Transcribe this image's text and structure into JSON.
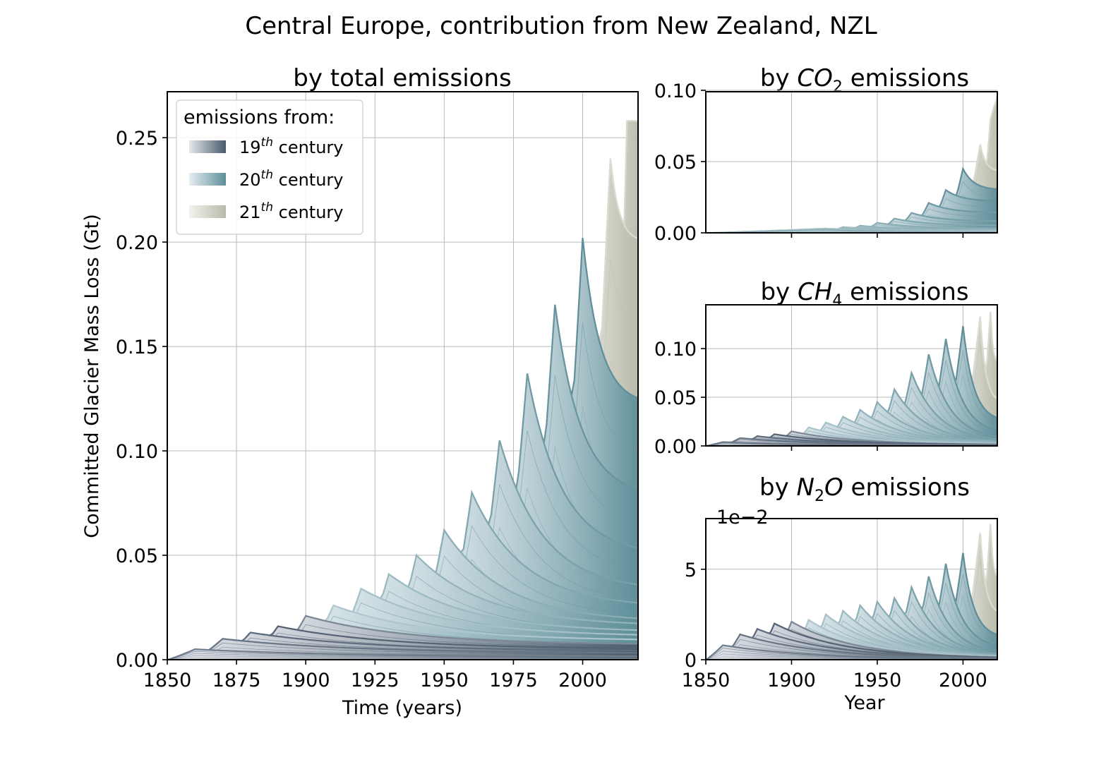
{
  "figure": {
    "suptitle": "Central Europe, contribution from New Zealand, NZL"
  },
  "colors": {
    "c19_dark": "#4a5a6c",
    "c19_light": "#e4e7ec",
    "c20_dark": "#5e8e99",
    "c20_light": "#e6eef2",
    "c21_dark": "#b9baa9",
    "c21_light": "#f3f3ee"
  },
  "legend": {
    "title": "emissions from:",
    "items": [
      {
        "base": "19",
        "sup": "th",
        "rest": " century",
        "color_key": "c19"
      },
      {
        "base": "20",
        "sup": "th",
        "rest": " century",
        "color_key": "c20"
      },
      {
        "base": "21",
        "sup": "th",
        "rest": " century",
        "color_key": "c21"
      }
    ]
  },
  "chart_data": [
    {
      "id": "total",
      "type": "area",
      "title": "by total emissions",
      "xlabel": "Time (years)",
      "ylabel": "Committed Glacier Mass Loss (Gt)",
      "xlim": [
        1850,
        2020
      ],
      "ylim": [
        0,
        0.272
      ],
      "xticks": [
        1850,
        1875,
        1900,
        1925,
        1950,
        1975,
        2000
      ],
      "xtick_labels": [
        "1850",
        "1875",
        "1900",
        "1925",
        "1950",
        "1975",
        "2000"
      ],
      "yticks": [
        0,
        0.05,
        0.1,
        0.15,
        0.2,
        0.25
      ],
      "ytick_labels": [
        "0.00",
        "0.05",
        "0.10",
        "0.15",
        "0.20",
        "0.25"
      ],
      "grid": true,
      "legend_position": "upper-left",
      "peak_years": [
        1860,
        1870,
        1880,
        1890,
        1900,
        1910,
        1920,
        1930,
        1940,
        1950,
        1960,
        1970,
        1980,
        1990,
        2000,
        2010,
        2016
      ],
      "peak_values": [
        0.005,
        0.01,
        0.013,
        0.016,
        0.021,
        0.026,
        0.034,
        0.041,
        0.05,
        0.062,
        0.08,
        0.105,
        0.137,
        0.17,
        0.202,
        0.24,
        0.258
      ],
      "end_values": [
        0.0015,
        0.003,
        0.004,
        0.005,
        0.007,
        0.009,
        0.011,
        0.013,
        0.016,
        0.018,
        0.025,
        0.033,
        0.05,
        0.078,
        0.122,
        0.2,
        0.258
      ]
    },
    {
      "id": "co2",
      "type": "area",
      "title_prefix": "by ",
      "title_formula": "CO",
      "title_sub": "2",
      "title_suffix": " emissions",
      "xlim": [
        1850,
        2020
      ],
      "ylim": [
        0,
        0.099
      ],
      "xticks": [
        1900,
        1950,
        2000
      ],
      "yticks": [
        0,
        0.05,
        0.1
      ],
      "ytick_labels": [
        "0.00",
        "0.05",
        "0.10"
      ],
      "grid": true,
      "show_xtick_labels": false,
      "peak_years": [
        1920,
        1930,
        1940,
        1950,
        1960,
        1970,
        1980,
        1990,
        2000,
        2010,
        2016
      ],
      "peak_values": [
        0.003,
        0.004,
        0.005,
        0.007,
        0.01,
        0.014,
        0.021,
        0.03,
        0.045,
        0.062,
        0.08
      ],
      "end_values": [
        0.001,
        0.0015,
        0.002,
        0.003,
        0.005,
        0.008,
        0.014,
        0.022,
        0.03,
        0.043,
        0.062
      ],
      "final_value": 0.096
    },
    {
      "id": "ch4",
      "type": "area",
      "title_prefix": "by ",
      "title_formula": "CH",
      "title_sub": "4",
      "title_suffix": " emissions",
      "xlim": [
        1850,
        2020
      ],
      "ylim": [
        0,
        0.145
      ],
      "xticks": [
        1900,
        1950,
        2000
      ],
      "yticks": [
        0,
        0.05,
        0.1
      ],
      "ytick_labels": [
        "0.00",
        "0.05",
        "0.10"
      ],
      "grid": true,
      "show_xtick_labels": false,
      "peak_years": [
        1860,
        1870,
        1880,
        1890,
        1900,
        1910,
        1920,
        1930,
        1940,
        1950,
        1960,
        1970,
        1980,
        1990,
        2000,
        2010,
        2016
      ],
      "peak_values": [
        0.004,
        0.008,
        0.01,
        0.012,
        0.015,
        0.019,
        0.024,
        0.03,
        0.037,
        0.045,
        0.058,
        0.075,
        0.094,
        0.11,
        0.123,
        0.133,
        0.138
      ],
      "end_values": [
        0.0003,
        0.0005,
        0.0007,
        0.0009,
        0.001,
        0.0012,
        0.0014,
        0.0016,
        0.002,
        0.0025,
        0.003,
        0.004,
        0.006,
        0.012,
        0.025,
        0.045,
        0.085
      ]
    },
    {
      "id": "n2o",
      "type": "area",
      "title_prefix": "by ",
      "title_formula": "N",
      "title_sub": "2",
      "title_formula2": "O",
      "title_suffix": " emissions",
      "xlabel": "Year",
      "offset_text": "1e−2",
      "xlim": [
        1850,
        2020
      ],
      "ylim": [
        0,
        7.8
      ],
      "xticks": [
        1850,
        1900,
        1950,
        2000
      ],
      "xtick_labels": [
        "1850",
        "1900",
        "1950",
        "2000"
      ],
      "yticks": [
        0,
        5
      ],
      "ytick_labels": [
        "0",
        "5"
      ],
      "grid": true,
      "peak_years": [
        1860,
        1870,
        1880,
        1890,
        1900,
        1910,
        1920,
        1930,
        1940,
        1950,
        1960,
        1970,
        1980,
        1990,
        2000,
        2010,
        2016
      ],
      "peak_values": [
        0.8,
        1.4,
        1.7,
        2.0,
        2.1,
        2.2,
        2.5,
        2.7,
        3.0,
        3.2,
        3.4,
        4.0,
        4.6,
        5.3,
        5.9,
        7.0,
        7.5
      ],
      "end_values": [
        0.02,
        0.03,
        0.04,
        0.05,
        0.06,
        0.07,
        0.08,
        0.09,
        0.1,
        0.12,
        0.15,
        0.2,
        0.3,
        0.6,
        1.2,
        2.5,
        4.5
      ]
    }
  ]
}
